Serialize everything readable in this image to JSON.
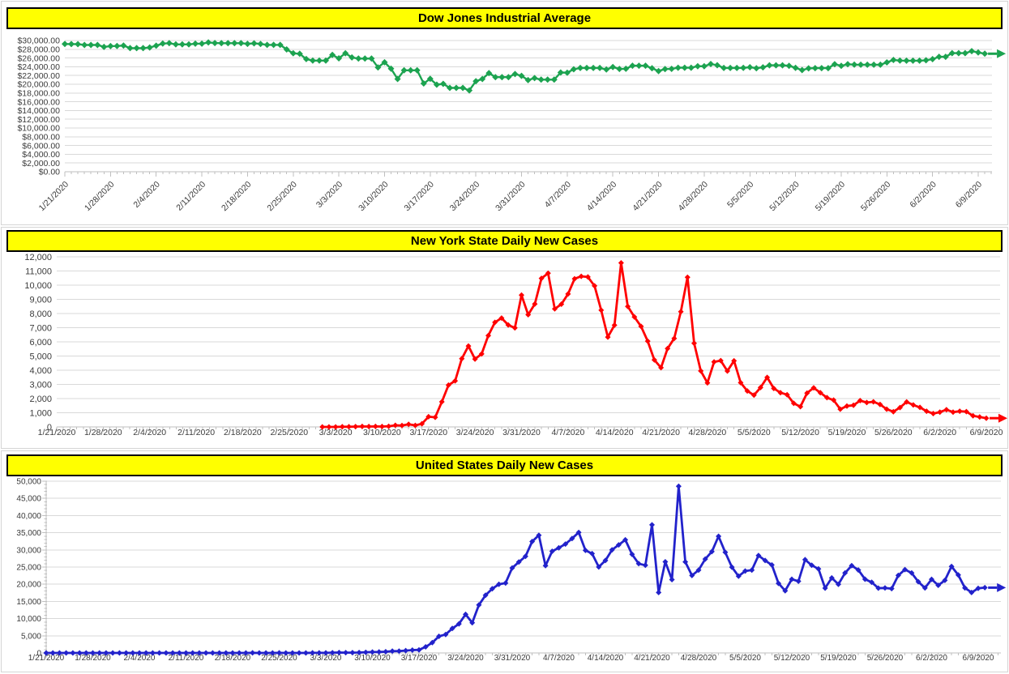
{
  "page": {
    "background": "#ffffff",
    "outer_border_color": "#d5d5d5"
  },
  "styles": {
    "title_bg": "#ffff00",
    "title_border": "#000000",
    "title_text_color": "#000000",
    "grid_color": "#d9d9d9",
    "axis_color": "#bfbfbf",
    "label_color": "#3b3b3b"
  },
  "x_axis": {
    "start_date": "1/21/2020",
    "tick_labels": [
      "1/21/2020",
      "1/28/2020",
      "2/4/2020",
      "2/11/2020",
      "2/18/2020",
      "2/25/2020",
      "3/3/2020",
      "3/10/2020",
      "3/17/2020",
      "3/24/2020",
      "3/31/2020",
      "4/7/2020",
      "4/14/2020",
      "4/21/2020",
      "4/28/2020",
      "5/5/2020",
      "5/12/2020",
      "5/19/2020",
      "5/26/2020",
      "6/2/2020",
      "6/9/2020"
    ],
    "tick_day_offsets": [
      0,
      7,
      14,
      21,
      28,
      35,
      42,
      49,
      56,
      63,
      70,
      77,
      84,
      91,
      98,
      105,
      112,
      119,
      126,
      133,
      140
    ]
  },
  "chart_data": [
    {
      "id": "dow",
      "type": "line",
      "title": "Dow Jones Industrial Average",
      "line_color": "#1ca350",
      "marker": "diamond",
      "end_arrow": true,
      "x_label_orientation": "rotated",
      "ylim": [
        0,
        30000
      ],
      "y_step": 2000,
      "y_tick_labels": [
        "$30,000.00",
        "$28,000.00",
        "$26,000.00",
        "$24,000.00",
        "$22,000.00",
        "$20,000.00",
        "$18,000.00",
        "$16,000.00",
        "$14,000.00",
        "$12,000.00",
        "$10,000.00",
        "$8,000.00",
        "$6,000.00",
        "$4,000.00",
        "$2,000.00",
        "$0.00"
      ],
      "start_day_offset": 0,
      "values": [
        29196,
        29186,
        29160,
        28990,
        28990,
        28990,
        28536,
        28723,
        28734,
        28859,
        28256,
        28256,
        28256,
        28400,
        28808,
        29291,
        29380,
        29103,
        29103,
        29103,
        29277,
        29276,
        29551,
        29423,
        29398,
        29398,
        29398,
        29398,
        29232,
        29348,
        29220,
        28992,
        28992,
        28992,
        27961,
        27081,
        26958,
        25767,
        25409,
        25409,
        25409,
        26703,
        25917,
        27091,
        26121,
        25865,
        25865,
        25865,
        23851,
        25018,
        23553,
        21200,
        23186,
        23186,
        23186,
        20188,
        21237,
        19899,
        20087,
        19174,
        19174,
        19174,
        18592,
        20705,
        21200,
        22552,
        21637,
        21637,
        21637,
        22327,
        21917,
        20944,
        21413,
        21053,
        21053,
        21053,
        22680,
        22654,
        23434,
        23719,
        23719,
        23719,
        23719,
        23391,
        23950,
        23504,
        23537,
        24242,
        24242,
        24242,
        23650,
        23019,
        23476,
        23515,
        23775,
        23775,
        23775,
        24134,
        24102,
        24634,
        24346,
        23724,
        23724,
        23724,
        23749,
        23883,
        23665,
        23876,
        24331,
        24331,
        24331,
        24222,
        23765,
        23248,
        23625,
        23685,
        23685,
        23685,
        24597,
        24206,
        24576,
        24474,
        24465,
        24465,
        24465,
        24465,
        24995,
        25548,
        25401,
        25383,
        25383,
        25383,
        25475,
        25743,
        26270,
        26282,
        27111,
        27111,
        27111,
        27572,
        27272,
        26990
      ]
    },
    {
      "id": "ny",
      "type": "line",
      "title": "New York State Daily New Cases",
      "line_color": "#ff0000",
      "marker": "diamond",
      "end_arrow": true,
      "x_label_orientation": "horizontal",
      "ylim": [
        0,
        12000
      ],
      "y_step": 1000,
      "y_tick_labels": [
        "12,000",
        "11,000",
        "10,000",
        "9,000",
        "8,000",
        "7,000",
        "6,000",
        "5,000",
        "4,000",
        "3,000",
        "2,000",
        "1,000",
        "0"
      ],
      "start_day_offset": 40,
      "values": [
        1,
        0,
        1,
        9,
        11,
        22,
        33,
        29,
        37,
        31,
        43,
        112,
        96,
        189,
        108,
        221,
        722,
        682,
        1770,
        2950,
        3254,
        4812,
        5707,
        4790,
        5146,
        6447,
        7377,
        7681,
        7195,
        6984,
        9298,
        7917,
        8669,
        10482,
        10841,
        8327,
        8658,
        9378,
        10453,
        10621,
        10575,
        9946,
        8236,
        6337,
        7177,
        11571,
        8505,
        7753,
        7090,
        6054,
        4726,
        4178,
        5526,
        6244,
        8130,
        10553,
        5902,
        3951,
        3110,
        4585,
        4681,
        3942,
        4663,
        3120,
        2538,
        2239,
        2776,
        3491,
        2715,
        2419,
        2273,
        1660,
        1430,
        2390,
        2762,
        2419,
        2061,
        1889,
        1249,
        1474,
        1525,
        1856,
        1718,
        1772,
        1589,
        1249,
        1072,
        1368,
        1768,
        1551,
        1376,
        1110,
        941,
        1045,
        1217,
        1045,
        1108,
        1079,
        781,
        702,
        620
      ]
    },
    {
      "id": "us",
      "type": "line",
      "title": "United States Daily New Cases",
      "line_color": "#2222cb",
      "marker": "diamond",
      "end_arrow": true,
      "x_label_orientation": "horizontal",
      "ylim": [
        0,
        50000
      ],
      "y_step": 5000,
      "y_tick_labels": [
        "50,000",
        "45,000",
        "40,000",
        "35,000",
        "30,000",
        "25,000",
        "20,000",
        "15,000",
        "10,000",
        "5,000",
        "0"
      ],
      "start_day_offset": 0,
      "values": [
        1,
        1,
        0,
        1,
        1,
        1,
        0,
        0,
        0,
        1,
        3,
        0,
        0,
        1,
        0,
        2,
        1,
        1,
        0,
        0,
        0,
        1,
        1,
        2,
        1,
        0,
        0,
        0,
        0,
        0,
        1,
        19,
        0,
        0,
        0,
        18,
        4,
        3,
        4,
        7,
        23,
        20,
        33,
        77,
        115,
        105,
        95,
        121,
        200,
        271,
        287,
        351,
        511,
        544,
        689,
        823,
        887,
        1766,
        2988,
        4835,
        5374,
        7123,
        8459,
        11236,
        8789,
        13963,
        16797,
        18695,
        19979,
        20353,
        24742,
        26473,
        28103,
        32425,
        34272,
        25398,
        29595,
        30613,
        31709,
        33323,
        35098,
        29861,
        28917,
        25023,
        26922,
        30003,
        31451,
        32922,
        28712,
        25995,
        25509,
        37289,
        17588,
        26543,
        21352,
        48529,
        26509,
        22541,
        24132,
        27326,
        29512,
        33955,
        29288,
        24972,
        22335,
        23841,
        24128,
        28369,
        26906,
        25621,
        20254,
        18117,
        21467,
        20869,
        27143,
        25508,
        24487,
        18873,
        21841,
        19970,
        23285,
        25434,
        24147,
        21458,
        20568,
        18874,
        18910,
        18721,
        22577,
        24266,
        23290,
        20724,
        18911,
        21430,
        19699,
        21140,
        25178,
        22698,
        18927,
        17598,
        18822,
        19000
      ]
    }
  ]
}
